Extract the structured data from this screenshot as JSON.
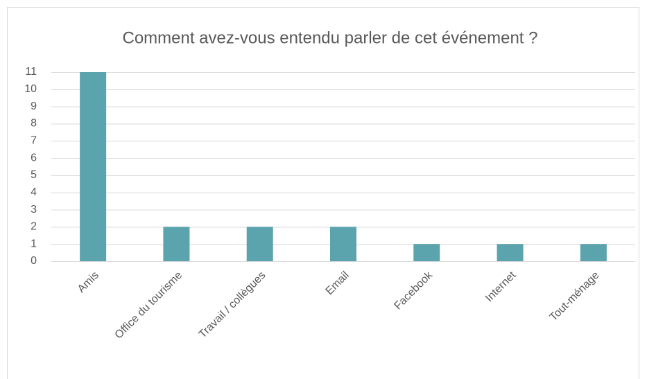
{
  "chart_data": {
    "type": "bar",
    "title": "Comment avez-vous entendu parler de cet événement ?",
    "categories": [
      "Amis",
      "Office du tourisme",
      "Travail / collègues",
      "Email",
      "Facebook",
      "Internet",
      "Tout-ménage"
    ],
    "values": [
      11,
      2,
      2,
      2,
      1,
      1,
      1
    ],
    "color": "#5ba3ad",
    "ylim": [
      0,
      11
    ],
    "yticks": [
      0,
      1,
      2,
      3,
      4,
      5,
      6,
      7,
      8,
      9,
      10,
      11
    ],
    "grid": true
  }
}
